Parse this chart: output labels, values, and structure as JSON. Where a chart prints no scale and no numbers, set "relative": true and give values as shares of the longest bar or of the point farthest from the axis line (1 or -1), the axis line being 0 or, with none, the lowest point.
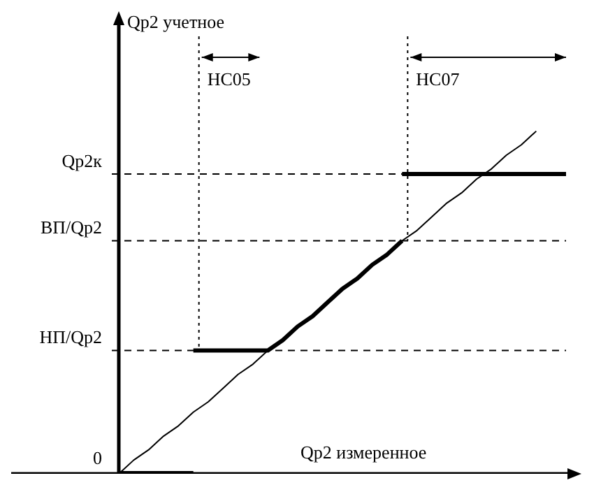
{
  "chart_data": {
    "type": "line",
    "relative": true,
    "xlabel": "Qp2 измеренное",
    "categories": [
      null,
      null,
      null,
      null,
      null,
      null,
      null,
      null,
      null,
      null,
      null,
      null,
      null,
      null,
      null,
      null,
      null,
      null,
      null,
      null,
      null,
      null,
      null,
      null,
      null,
      null,
      null,
      null,
      null,
      null,
      null
    ],
    "series": [
      {
        "color": "#000000",
        "values": [
          0,
          0,
          0,
          0,
          0,
          0,
          null,
          null,
          null,
          null,
          null,
          null,
          null,
          null,
          null,
          null,
          null,
          null,
          null,
          null,
          null,
          null,
          null,
          null,
          null,
          null,
          null,
          null,
          null,
          null,
          null
        ]
      },
      {
        "color": "#000000",
        "values": [
          null,
          null,
          null,
          null,
          null,
          0.36,
          0.36,
          0.36,
          0.36,
          0.36,
          0.36,
          0.39,
          0.43,
          0.46,
          0.5,
          0.54,
          0.57,
          0.61,
          0.64,
          0.68,
          null,
          null,
          null,
          null,
          null,
          null,
          null,
          null,
          null,
          null,
          null
        ]
      },
      {
        "color": "#000000",
        "values": [
          null,
          null,
          null,
          null,
          null,
          null,
          null,
          null,
          null,
          null,
          null,
          null,
          null,
          null,
          null,
          null,
          null,
          null,
          null,
          0.875,
          0.875,
          0.875,
          0.875,
          0.875,
          0.875,
          0.875,
          0.875,
          0.875,
          0.875,
          0.875,
          0.875
        ]
      },
      {
        "color": "#000000",
        "values": [
          0,
          0.04,
          0.07,
          0.11,
          0.14,
          0.18,
          0.21,
          0.25,
          0.29,
          0.32,
          0.36,
          0.39,
          0.43,
          0.46,
          0.5,
          0.54,
          0.57,
          0.61,
          0.64,
          0.68,
          0.71,
          0.75,
          0.79,
          0.82,
          0.86,
          0.89,
          0.93,
          0.96,
          1,
          null,
          null
        ]
      }
    ],
    "ref_lines": [
      {
        "axis": "y",
        "value": 0.875,
        "label": "Qp2к",
        "line_style": "dashed"
      },
      {
        "axis": "y",
        "value": 0.68,
        "label": "ВП/Qp2",
        "line_style": "dashed"
      },
      {
        "axis": "y",
        "value": 0.36,
        "label": "НП/Qp2",
        "line_style": "dashed"
      }
    ],
    "annotations": [
      "Qp2 учетное",
      "0",
      "НС05",
      "НС07"
    ],
    "legend": false,
    "marker": "none",
    "line_style": "solid"
  }
}
